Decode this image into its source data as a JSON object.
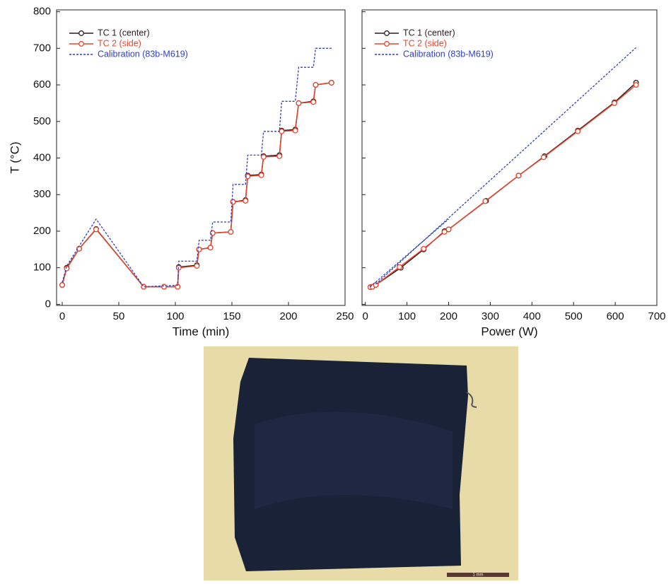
{
  "chart_data": [
    {
      "type": "line",
      "xlabel": "Time (min)",
      "ylabel": "T (°C)",
      "xlim": [
        -5,
        250
      ],
      "xticks": [
        0,
        50,
        100,
        150,
        200,
        250
      ],
      "ylim": [
        -3,
        805
      ],
      "yticks": [
        0,
        100,
        200,
        300,
        400,
        500,
        600,
        700,
        800
      ],
      "ytick_labels": true,
      "legend": "upper left",
      "series": [
        {
          "name": "TC 1 (center)",
          "color": "#2a1d1d",
          "markers": true,
          "dashed": false,
          "x": [
            0,
            4,
            15,
            30,
            72,
            90,
            102,
            103,
            119,
            121,
            131,
            133,
            149,
            151,
            162,
            164,
            176,
            178,
            192,
            194,
            206,
            209,
            222,
            224,
            238
          ],
          "values": [
            53,
            100,
            152,
            206,
            48,
            48,
            48,
            102,
            107,
            150,
            155,
            195,
            198,
            280,
            285,
            352,
            355,
            405,
            408,
            475,
            478,
            550,
            555,
            600,
            606
          ]
        },
        {
          "name": "TC 2 (side)",
          "color": "#e8442c",
          "markers": true,
          "dashed": false,
          "x": [
            0,
            4,
            15,
            30,
            72,
            90,
            102,
            103,
            119,
            121,
            131,
            133,
            149,
            151,
            162,
            164,
            176,
            178,
            192,
            194,
            206,
            209,
            222,
            224,
            238
          ],
          "values": [
            53,
            98,
            152,
            205,
            48,
            48,
            48,
            100,
            105,
            150,
            155,
            195,
            198,
            280,
            283,
            350,
            353,
            403,
            405,
            473,
            475,
            550,
            553,
            600,
            606
          ]
        },
        {
          "name": "Calibration (83b-M619)",
          "color": "#2f3fc0",
          "markers": false,
          "dashed": true,
          "x": [
            0,
            4,
            30,
            72,
            102,
            103,
            119,
            121,
            131,
            133,
            149,
            151,
            162,
            164,
            176,
            178,
            192,
            194,
            206,
            209,
            222,
            224,
            238
          ],
          "values": [
            60,
            105,
            233,
            48,
            52,
            118,
            118,
            175,
            175,
            225,
            225,
            328,
            328,
            408,
            408,
            473,
            473,
            555,
            555,
            648,
            648,
            700,
            700
          ]
        }
      ]
    },
    {
      "type": "line",
      "xlabel": "Power (W)",
      "xlim": [
        -8,
        700
      ],
      "xticks": [
        0,
        100,
        200,
        300,
        400,
        500,
        600,
        700
      ],
      "ylim": [
        -3,
        805
      ],
      "yticks": [
        0,
        100,
        200,
        300,
        400,
        500,
        600,
        700,
        800
      ],
      "ytick_labels": false,
      "legend": "upper left",
      "series": [
        {
          "name": "TC 1 (center)",
          "color": "#2a1d1d",
          "markers": true,
          "dashed": false,
          "x": [
            12,
            17,
            25,
            85,
            140,
            190,
            200,
            290,
            368,
            430,
            510,
            598,
            650
          ],
          "values": [
            47,
            48,
            53,
            100,
            150,
            200,
            205,
            283,
            352,
            405,
            475,
            552,
            606
          ]
        },
        {
          "name": "TC 2 (side)",
          "color": "#e8442c",
          "markers": true,
          "dashed": false,
          "x": [
            12,
            17,
            25,
            82,
            140,
            190,
            200,
            288,
            368,
            428,
            510,
            598,
            650
          ],
          "values": [
            47,
            48,
            53,
            102,
            152,
            198,
            205,
            282,
            352,
            402,
            473,
            550,
            600
          ]
        },
        {
          "name": "Calibration (83b-M619)",
          "color": "#2f3fc0",
          "markers": false,
          "dashed": true,
          "x": [
            12,
            200,
            null,
            25,
            650
          ],
          "values": [
            48,
            233,
            null,
            55,
            702
          ]
        }
      ]
    }
  ],
  "image": {
    "scale_label": "1 mm"
  }
}
